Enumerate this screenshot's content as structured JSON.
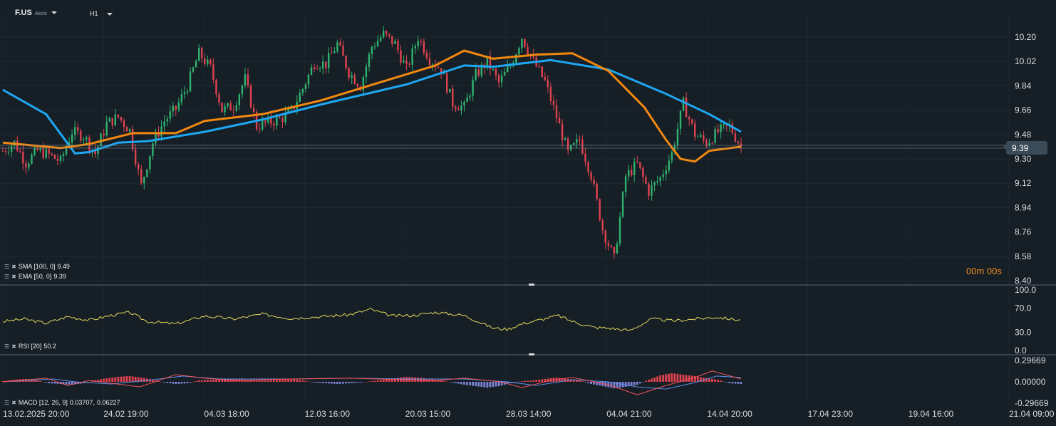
{
  "toolbar": {
    "symbol": "F.US",
    "symbol_type": "Akcie",
    "timeframe": "H1"
  },
  "indicators": {
    "sma_label": "SMA [100,  0]",
    "sma_value": "9.49",
    "ema_label": "EMA [50, 0]",
    "ema_value": "9.39",
    "rsi_label": "RSI [20]",
    "rsi_value": "50.2",
    "macd_label": "MACD [12, 26, 9]",
    "macd_value1": "0.03707,",
    "macd_value2": "0.06227"
  },
  "countdown": "00m 00s",
  "last_price_label": "9.39",
  "colors": {
    "background": "#161f26",
    "bull": "#2fb36f",
    "bear": "#e0424f",
    "sma": "#1ea7f2",
    "ema": "#f2880f",
    "rsi": "#e3d85a",
    "macd_line": "#f2545b",
    "signal_line": "#5d8ee8",
    "hist_pos": "#e0424f",
    "hist_neg": "#7d82d6"
  },
  "chart_data": [
    {
      "type": "candlestick",
      "name": "price",
      "ylim": [
        8.4,
        10.3
      ],
      "y_ticks": [
        "10.20",
        "10.02",
        "9.84",
        "9.66",
        "9.48",
        "9.30",
        "9.12",
        "8.94",
        "8.76",
        "8.58",
        "8.40"
      ],
      "last_price": 9.39,
      "x_ticks": [
        "13.02.2025  20:00",
        "24.02  19:00",
        "04.03  18:00",
        "12.03  16:00",
        "20.03  15:00",
        "28.03  14:00",
        "04.04  21:00",
        "14.04  20:00",
        "17.04  23:00",
        "19.04  16:00",
        "21.04  09:00"
      ],
      "close_path": [
        [
          0,
          9.36
        ],
        [
          8,
          9.42
        ],
        [
          16,
          9.27
        ],
        [
          24,
          9.36
        ],
        [
          32,
          9.33
        ],
        [
          40,
          9.28
        ],
        [
          48,
          9.5
        ],
        [
          56,
          9.47
        ],
        [
          64,
          9.34
        ],
        [
          72,
          9.56
        ],
        [
          80,
          9.61
        ],
        [
          88,
          9.51
        ],
        [
          96,
          9.1
        ],
        [
          104,
          9.42
        ],
        [
          112,
          9.58
        ],
        [
          120,
          9.67
        ],
        [
          128,
          9.84
        ],
        [
          136,
          10.08
        ],
        [
          144,
          9.97
        ],
        [
          152,
          9.66
        ],
        [
          160,
          9.69
        ],
        [
          168,
          9.89
        ],
        [
          176,
          9.54
        ],
        [
          184,
          9.57
        ],
        [
          192,
          9.59
        ],
        [
          200,
          9.65
        ],
        [
          208,
          9.82
        ],
        [
          216,
          10.01
        ],
        [
          224,
          10.0
        ],
        [
          232,
          10.15
        ],
        [
          240,
          9.94
        ],
        [
          248,
          9.84
        ],
        [
          256,
          10.13
        ],
        [
          264,
          10.22
        ],
        [
          272,
          10.15
        ],
        [
          280,
          9.96
        ],
        [
          288,
          10.2
        ],
        [
          296,
          10.04
        ],
        [
          304,
          9.96
        ],
        [
          312,
          9.71
        ],
        [
          320,
          9.68
        ],
        [
          328,
          9.92
        ],
        [
          336,
          10.02
        ],
        [
          344,
          9.86
        ],
        [
          352,
          9.99
        ],
        [
          360,
          10.2
        ],
        [
          368,
          10.02
        ],
        [
          376,
          9.87
        ],
        [
          384,
          9.61
        ],
        [
          392,
          9.34
        ],
        [
          400,
          9.44
        ],
        [
          408,
          9.18
        ],
        [
          416,
          8.78
        ],
        [
          424,
          8.56
        ],
        [
          432,
          9.17
        ],
        [
          440,
          9.26
        ],
        [
          448,
          9.06
        ],
        [
          456,
          9.16
        ],
        [
          464,
          9.34
        ],
        [
          472,
          9.71
        ],
        [
          480,
          9.48
        ],
        [
          488,
          9.42
        ],
        [
          496,
          9.5
        ],
        [
          504,
          9.54
        ],
        [
          512,
          9.39
        ]
      ],
      "sma_100": [
        [
          0,
          9.81
        ],
        [
          30,
          9.63
        ],
        [
          50,
          9.34
        ],
        [
          60,
          9.35
        ],
        [
          80,
          9.42
        ],
        [
          100,
          9.43
        ],
        [
          140,
          9.5
        ],
        [
          180,
          9.59
        ],
        [
          220,
          9.7
        ],
        [
          280,
          9.85
        ],
        [
          320,
          9.99
        ],
        [
          340,
          9.98
        ],
        [
          380,
          10.03
        ],
        [
          420,
          9.96
        ],
        [
          460,
          9.78
        ],
        [
          490,
          9.63
        ],
        [
          512,
          9.5
        ]
      ],
      "ema_50": [
        [
          0,
          9.42
        ],
        [
          40,
          9.38
        ],
        [
          60,
          9.41
        ],
        [
          90,
          9.49
        ],
        [
          120,
          9.49
        ],
        [
          140,
          9.58
        ],
        [
          180,
          9.63
        ],
        [
          220,
          9.73
        ],
        [
          260,
          9.86
        ],
        [
          300,
          9.99
        ],
        [
          320,
          10.1
        ],
        [
          340,
          10.04
        ],
        [
          370,
          10.07
        ],
        [
          395,
          10.08
        ],
        [
          420,
          9.95
        ],
        [
          445,
          9.68
        ],
        [
          460,
          9.44
        ],
        [
          470,
          9.3
        ],
        [
          480,
          9.28
        ],
        [
          490,
          9.36
        ],
        [
          512,
          9.39
        ]
      ]
    },
    {
      "type": "line",
      "name": "RSI",
      "ylim": [
        0,
        100
      ],
      "y_ticks": [
        "100.0",
        "70.0",
        "30.0",
        "0.0"
      ],
      "x": [
        0,
        15,
        30,
        45,
        60,
        75,
        88,
        100,
        120,
        140,
        160,
        180,
        200,
        220,
        240,
        255,
        270,
        285,
        300,
        320,
        340,
        350,
        360,
        375,
        385,
        395,
        410,
        420,
        435,
        450,
        465,
        480,
        495,
        512
      ],
      "values": [
        48,
        52,
        45,
        56,
        50,
        58,
        63,
        48,
        44,
        57,
        52,
        60,
        53,
        56,
        59,
        68,
        57,
        58,
        63,
        58,
        37,
        35,
        44,
        52,
        58,
        48,
        38,
        37,
        33,
        52,
        49,
        52,
        55,
        50
      ]
    },
    {
      "type": "bar+line",
      "name": "MACD",
      "ylim": [
        -0.29669,
        0.29669
      ],
      "y_ticks": [
        "0.29669",
        "0.00000",
        "-0.29669"
      ],
      "histogram": [
        0.01,
        0.03,
        0.04,
        0.02,
        -0.02,
        -0.03,
        -0.04,
        -0.02,
        0.02,
        0.05,
        0.07,
        0.08,
        0.06,
        0.03,
        -0.01,
        -0.03,
        -0.02,
        0.02,
        0.03,
        0.03,
        0.04,
        0.03,
        0.02,
        0.02,
        0.03,
        0.04,
        0.02,
        -0.01,
        -0.02,
        -0.03,
        -0.02,
        -0.01,
        0.01,
        0.03,
        0.05,
        0.07,
        0.06,
        0.04,
        0.02,
        -0.01,
        -0.04,
        -0.06,
        -0.08,
        -0.06,
        -0.02,
        0.01,
        0.02,
        0.04,
        0.06,
        0.04,
        0.02,
        -0.03,
        -0.06,
        -0.09,
        -0.07,
        -0.04,
        0.03,
        0.09,
        0.12,
        0.1,
        0.08,
        0.05,
        0.03,
        -0.02,
        -0.03
      ],
      "macd_line": [
        [
          0,
          0.0
        ],
        [
          30,
          0.05
        ],
        [
          45,
          -0.05
        ],
        [
          60,
          0.02
        ],
        [
          95,
          -0.07
        ],
        [
          120,
          0.1
        ],
        [
          140,
          0.05
        ],
        [
          160,
          0.02
        ],
        [
          200,
          0.04
        ],
        [
          240,
          0.05
        ],
        [
          280,
          0.03
        ],
        [
          300,
          0.02
        ],
        [
          320,
          0.05
        ],
        [
          345,
          0.0
        ],
        [
          360,
          -0.08
        ],
        [
          380,
          0.02
        ],
        [
          395,
          0.06
        ],
        [
          420,
          -0.04
        ],
        [
          440,
          -0.18
        ],
        [
          460,
          -0.05
        ],
        [
          480,
          0.06
        ],
        [
          492,
          0.15
        ],
        [
          512,
          0.04
        ]
      ],
      "signal_line": [
        [
          0,
          0.0
        ],
        [
          35,
          0.04
        ],
        [
          50,
          0.0
        ],
        [
          75,
          -0.03
        ],
        [
          100,
          0.02
        ],
        [
          125,
          0.08
        ],
        [
          150,
          0.04
        ],
        [
          200,
          0.04
        ],
        [
          240,
          0.05
        ],
        [
          280,
          0.04
        ],
        [
          320,
          0.04
        ],
        [
          350,
          0.0
        ],
        [
          370,
          -0.05
        ],
        [
          395,
          0.03
        ],
        [
          420,
          0.0
        ],
        [
          440,
          -0.07
        ],
        [
          460,
          -0.1
        ],
        [
          480,
          -0.01
        ],
        [
          495,
          0.08
        ],
        [
          512,
          0.06
        ]
      ]
    }
  ]
}
